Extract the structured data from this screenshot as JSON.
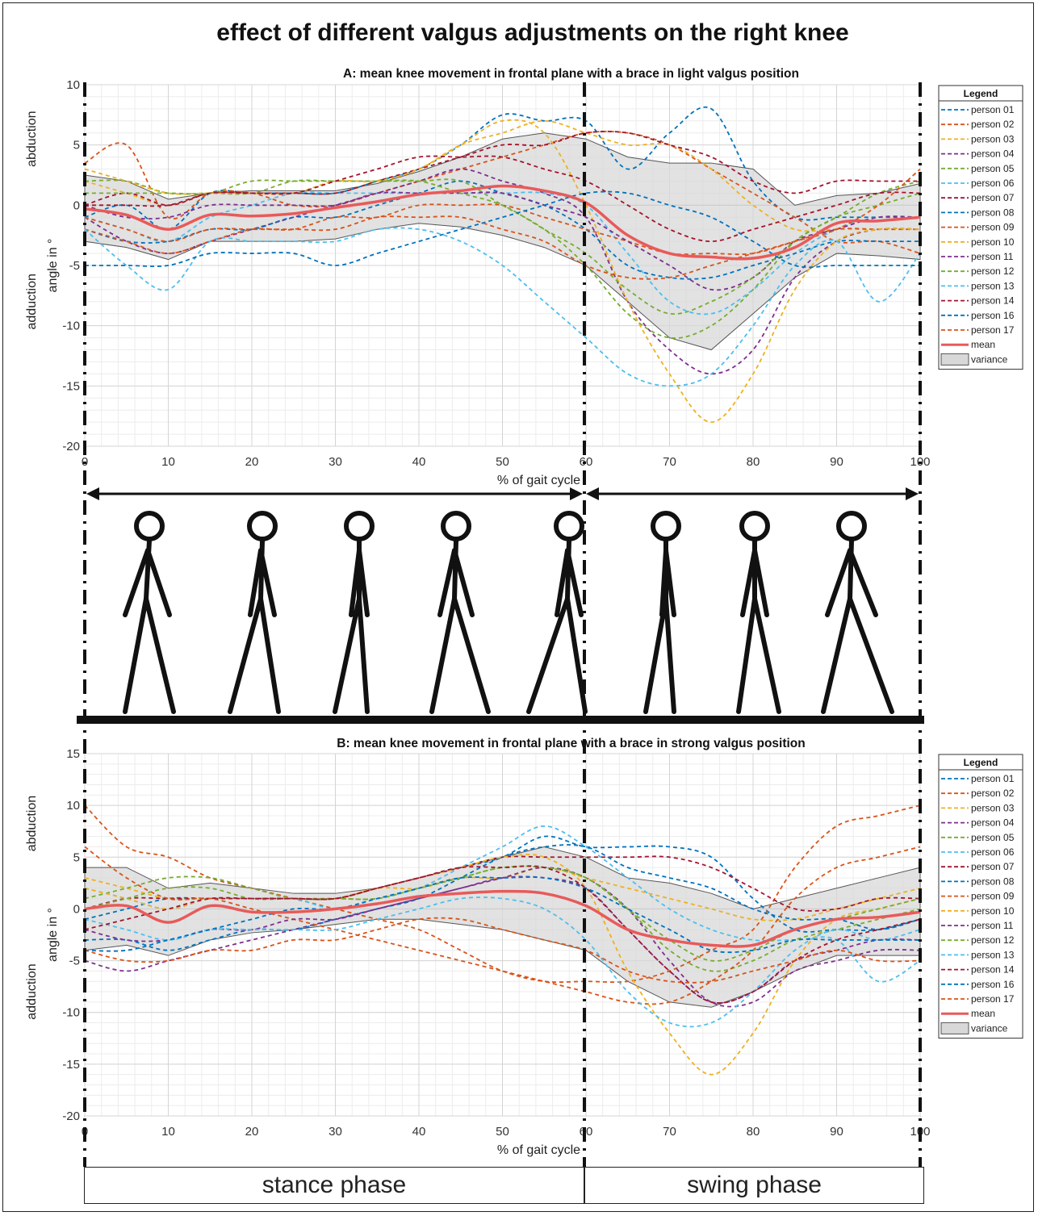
{
  "title": "effect of different valgus adjustments on the right knee",
  "phases": {
    "stance": "stance phase",
    "swing": "swing phase"
  },
  "colors": {
    "person 01": "#0072BD",
    "person 02": "#D95319",
    "person 03": "#EDB120",
    "person 04": "#7E2F8E",
    "person 05": "#77AC30",
    "person 06": "#4DBEEE",
    "person 07": "#A2142F",
    "person 08": "#0072BD",
    "person 09": "#D95319",
    "person 10": "#EDB120",
    "person 11": "#7E2F8E",
    "person 12": "#77AC30",
    "person 13": "#4DBEEE",
    "person 14": "#A2142F",
    "person 16": "#0072BD",
    "person 17": "#D95319",
    "mean": "#E85A5A",
    "variance": "#d8d8d8"
  },
  "chart_data": [
    {
      "type": "line",
      "title": "A: mean knee movement in frontal plane with a brace in light valgus position",
      "xlabel": "% of gait cycle",
      "ylabel": "angle in °",
      "ylabel_upper": "abduction",
      "ylabel_lower": "adduction",
      "xlim": [
        0,
        100
      ],
      "ylim": [
        -20,
        10
      ],
      "xticks": [
        0,
        10,
        20,
        30,
        40,
        50,
        60,
        70,
        80,
        90,
        100
      ],
      "yticks": [
        10,
        5,
        0,
        -5,
        -10,
        -15,
        -20
      ],
      "grid": true,
      "legend": "right",
      "legend_title": "Legend",
      "x": [
        0,
        5,
        10,
        15,
        20,
        25,
        30,
        35,
        40,
        45,
        50,
        55,
        60,
        65,
        70,
        75,
        80,
        85,
        90,
        95,
        100
      ],
      "series": [
        {
          "name": "person 01",
          "values": [
            -1,
            0,
            -2,
            1,
            1,
            1,
            1,
            2,
            3,
            5,
            7.5,
            7,
            7,
            3,
            6,
            8,
            2,
            -1,
            -1,
            -1,
            -1
          ]
        },
        {
          "name": "person 02",
          "values": [
            3.5,
            5,
            -1,
            1,
            1,
            0,
            0,
            1,
            2,
            3,
            4,
            5,
            6,
            6,
            5,
            3,
            1,
            -1,
            -3,
            -3,
            -4
          ]
        },
        {
          "name": "person 03",
          "values": [
            2,
            1,
            0,
            1,
            1,
            1,
            1,
            2,
            3,
            5,
            6,
            7,
            6,
            5,
            5,
            3,
            0,
            -2,
            -2,
            -2,
            -2
          ]
        },
        {
          "name": "person 04",
          "values": [
            -1,
            -3,
            -4,
            -3,
            -2,
            -1,
            0,
            1,
            2,
            3,
            2,
            1,
            -1,
            -8,
            -12,
            -14,
            -12,
            -6,
            -3,
            -2,
            -2
          ]
        },
        {
          "name": "person 05",
          "values": [
            2,
            2,
            1,
            1,
            1,
            2,
            2,
            2,
            2,
            2,
            0,
            -2,
            -5,
            -9,
            -11,
            -10,
            -7,
            -3,
            -1,
            1,
            2
          ]
        },
        {
          "name": "person 06",
          "values": [
            -1,
            -2,
            -3,
            -1,
            0,
            1,
            1,
            1,
            1,
            1,
            1,
            1,
            0,
            -4,
            -8,
            -9,
            -7,
            -4,
            -2,
            -1,
            -1
          ]
        },
        {
          "name": "person 07",
          "values": [
            0,
            1,
            0,
            1,
            1,
            1,
            1,
            2,
            3,
            4,
            5,
            5,
            6,
            6,
            5,
            4,
            2,
            1,
            2,
            2,
            2
          ]
        },
        {
          "name": "person 08",
          "values": [
            -2,
            -3,
            -3,
            -2,
            -2,
            -1,
            -1,
            0,
            1,
            2,
            1,
            0,
            -2,
            -5,
            -6,
            -6,
            -5,
            -4,
            -3,
            -3,
            -3
          ]
        },
        {
          "name": "person 09",
          "values": [
            -2,
            -3,
            -4,
            -3,
            -2,
            -2,
            -1,
            -1,
            0,
            0,
            0,
            -1,
            -2,
            -3,
            -4,
            -4,
            -4,
            -3,
            -2,
            -2,
            -2
          ]
        },
        {
          "name": "person 10",
          "values": [
            3,
            2,
            1,
            1,
            1,
            1,
            2,
            2,
            3,
            5,
            7,
            6,
            0,
            -8,
            -14,
            -18,
            -14,
            -7,
            -3,
            -2,
            -2
          ]
        },
        {
          "name": "person 11",
          "values": [
            0,
            -1,
            -1,
            0,
            0,
            0,
            0,
            1,
            1,
            1,
            1,
            0,
            -1,
            -3,
            -5,
            -7,
            -6,
            -3,
            -2,
            -1,
            -1
          ]
        },
        {
          "name": "person 12",
          "values": [
            1,
            1,
            1,
            1,
            2,
            2,
            2,
            2,
            2,
            1,
            0,
            -2,
            -4,
            -7,
            -9,
            -8,
            -6,
            -3,
            -1,
            0,
            1
          ]
        },
        {
          "name": "person 13",
          "values": [
            -2,
            -5,
            -7,
            -3,
            -3,
            -3,
            -3,
            -2,
            -2,
            -3,
            -5,
            -8,
            -11,
            -14,
            -15,
            -14,
            -10,
            -5,
            -3,
            -8,
            -4
          ]
        },
        {
          "name": "person 14",
          "values": [
            0,
            0,
            0,
            1,
            1,
            1,
            2,
            3,
            4,
            4,
            4,
            3,
            2,
            0,
            -2,
            -3,
            -2,
            -1,
            0,
            1,
            1
          ]
        },
        {
          "name": "person 16",
          "values": [
            -5,
            -5,
            -5,
            -4,
            -4,
            -4,
            -5,
            -4,
            -3,
            -2,
            -1,
            0,
            1,
            1,
            0,
            -1,
            -3,
            -5,
            -5,
            -5,
            -5
          ]
        },
        {
          "name": "person 17",
          "values": [
            -1,
            -2,
            -3,
            -2,
            -2,
            -2,
            -2,
            -1,
            -1,
            -1,
            -2,
            -3,
            -5,
            -6,
            -6,
            -5,
            -4,
            -3,
            -2,
            0,
            3
          ]
        }
      ],
      "mean": {
        "name": "mean",
        "values": [
          -0.3,
          -0.8,
          -2,
          -0.8,
          -0.9,
          -0.7,
          -0.2,
          0.3,
          0.9,
          1.2,
          1.6,
          1.2,
          0.2,
          -2.5,
          -4,
          -4.3,
          -4.4,
          -3.5,
          -1.5,
          -1.3,
          -1
        ]
      },
      "variance": {
        "name": "variance",
        "upper": [
          2.5,
          2,
          0.5,
          1,
          1.2,
          1.2,
          1.2,
          1.8,
          2.8,
          4,
          5.5,
          6,
          5.5,
          4,
          3.5,
          3.5,
          3,
          0,
          0.8,
          1,
          1.8
        ],
        "lower": [
          -3,
          -3.5,
          -4.5,
          -3,
          -3,
          -3,
          -2.8,
          -2,
          -1.5,
          -1.8,
          -2.5,
          -3.5,
          -5,
          -8,
          -11,
          -12,
          -9,
          -6,
          -4,
          -4.2,
          -4.5
        ]
      }
    },
    {
      "type": "line",
      "title": "B: mean knee movement in frontal plane with a brace in strong valgus position",
      "xlabel": "% of gait cycle",
      "ylabel": "angle in °",
      "ylabel_upper": "abduction",
      "ylabel_lower": "adduction",
      "xlim": [
        0,
        100
      ],
      "ylim": [
        -20,
        15
      ],
      "xticks": [
        0,
        10,
        20,
        30,
        40,
        50,
        60,
        70,
        80,
        90,
        100
      ],
      "yticks": [
        15,
        10,
        5,
        0,
        -5,
        -10,
        -15,
        -20
      ],
      "grid": true,
      "legend": "right",
      "legend_title": "Legend",
      "x": [
        0,
        5,
        10,
        15,
        20,
        25,
        30,
        35,
        40,
        45,
        50,
        55,
        60,
        65,
        70,
        75,
        80,
        85,
        90,
        95,
        100
      ],
      "series": [
        {
          "name": "person 01",
          "values": [
            -1,
            0,
            1,
            1,
            1,
            1,
            1,
            2,
            3,
            4,
            5,
            7,
            6,
            6,
            6,
            5,
            1,
            -2,
            -2,
            -2,
            -1
          ]
        },
        {
          "name": "person 02",
          "values": [
            10,
            6,
            5,
            3,
            2,
            1,
            0,
            -1,
            -2,
            -4,
            -6,
            -7,
            -7,
            -7,
            -6,
            -4,
            -2,
            4,
            8,
            9,
            10
          ]
        },
        {
          "name": "person 03",
          "values": [
            3,
            2,
            1,
            1,
            1,
            1,
            1,
            2,
            2,
            3,
            3,
            4,
            3,
            2,
            1,
            0,
            -1,
            -1,
            0,
            1,
            2
          ]
        },
        {
          "name": "person 04",
          "values": [
            -5,
            -6,
            -5,
            -4,
            -3,
            -2,
            -1,
            0,
            1,
            2,
            3,
            4,
            3,
            0,
            -5,
            -9,
            -9,
            -6,
            -5,
            -4,
            -4
          ]
        },
        {
          "name": "person 05",
          "values": [
            1,
            2,
            3,
            3,
            2,
            1,
            1,
            1,
            2,
            3,
            4,
            4,
            3,
            0,
            -4,
            -6,
            -5,
            -3,
            -2,
            -1,
            0
          ]
        },
        {
          "name": "person 06",
          "values": [
            2,
            1,
            0,
            1,
            1,
            1,
            0,
            1,
            2,
            4,
            6,
            8,
            6,
            3,
            0,
            -2,
            -3,
            -3,
            -3,
            -7,
            -5
          ]
        },
        {
          "name": "person 07",
          "values": [
            0,
            1,
            1,
            1,
            1,
            1,
            1,
            2,
            3,
            4,
            5,
            5,
            5,
            5,
            5,
            4,
            2,
            0,
            0,
            1,
            1
          ]
        },
        {
          "name": "person 08",
          "values": [
            -3,
            -3,
            -4,
            -3,
            -2,
            -2,
            -1,
            0,
            1,
            3,
            5,
            6,
            6,
            4,
            3,
            2,
            0,
            -1,
            -1,
            -2,
            -1
          ]
        },
        {
          "name": "person 09",
          "values": [
            6,
            3,
            1,
            1,
            0,
            -1,
            -2,
            -3,
            -4,
            -5,
            -6,
            -7,
            -8,
            -9,
            -9,
            -7,
            -4,
            1,
            4,
            5,
            6
          ]
        },
        {
          "name": "person 10",
          "values": [
            2,
            1,
            0,
            1,
            1,
            1,
            1,
            2,
            3,
            4,
            5,
            5,
            2,
            -6,
            -12,
            -16,
            -12,
            -5,
            -1,
            0,
            1
          ]
        },
        {
          "name": "person 11",
          "values": [
            -2,
            -3,
            -3,
            -2,
            -2,
            -1,
            -1,
            0,
            1,
            2,
            3,
            3,
            2,
            -2,
            -6,
            -9,
            -8,
            -5,
            -4,
            -3,
            -3
          ]
        },
        {
          "name": "person 12",
          "values": [
            0,
            1,
            2,
            2,
            1,
            1,
            1,
            1,
            2,
            3,
            4,
            4,
            3,
            0,
            -3,
            -5,
            -4,
            -2,
            -1,
            0,
            1
          ]
        },
        {
          "name": "person 13",
          "values": [
            -1,
            -2,
            -3,
            -2,
            -2,
            -2,
            -2,
            -1,
            0,
            1,
            1,
            0,
            -3,
            -8,
            -11,
            -11,
            -8,
            -4,
            -2,
            -3,
            -2
          ]
        },
        {
          "name": "person 14",
          "values": [
            -2,
            -1,
            0,
            1,
            1,
            1,
            1,
            2,
            3,
            4,
            4,
            4,
            2,
            -2,
            -6,
            -9,
            -8,
            -5,
            -3,
            -2,
            -1
          ]
        },
        {
          "name": "person 16",
          "values": [
            -4,
            -4,
            -3,
            -2,
            -1,
            0,
            0,
            1,
            2,
            3,
            3,
            3,
            2,
            0,
            -2,
            -4,
            -4,
            -3,
            -3,
            -3,
            -3
          ]
        },
        {
          "name": "person 17",
          "values": [
            -4,
            -5,
            -5,
            -4,
            -4,
            -3,
            -3,
            -2,
            -1,
            -1,
            -2,
            -3,
            -4,
            -6,
            -7,
            -7,
            -6,
            -5,
            -4,
            -5,
            -5
          ]
        }
      ],
      "mean": {
        "name": "mean",
        "values": [
          0,
          0.3,
          -1.3,
          0.3,
          -0.3,
          -0.3,
          0,
          0.5,
          1.2,
          1.5,
          1.7,
          1.5,
          0.3,
          -2,
          -3,
          -3.5,
          -3.5,
          -2,
          -1,
          -0.8,
          -0.3
        ]
      },
      "variance": {
        "name": "variance",
        "upper": [
          4,
          4,
          2,
          2.5,
          2,
          1.5,
          1.5,
          2,
          3,
          4,
          5,
          6,
          5,
          3,
          2.5,
          1.5,
          0,
          1,
          2,
          3,
          4
        ],
        "lower": [
          -4,
          -3.5,
          -4.5,
          -3,
          -2.3,
          -2,
          -1.5,
          -1,
          -1,
          -1.5,
          -2,
          -3,
          -4,
          -7,
          -9,
          -9.5,
          -8,
          -6,
          -4.5,
          -4.5,
          -4.5
        ]
      }
    }
  ]
}
